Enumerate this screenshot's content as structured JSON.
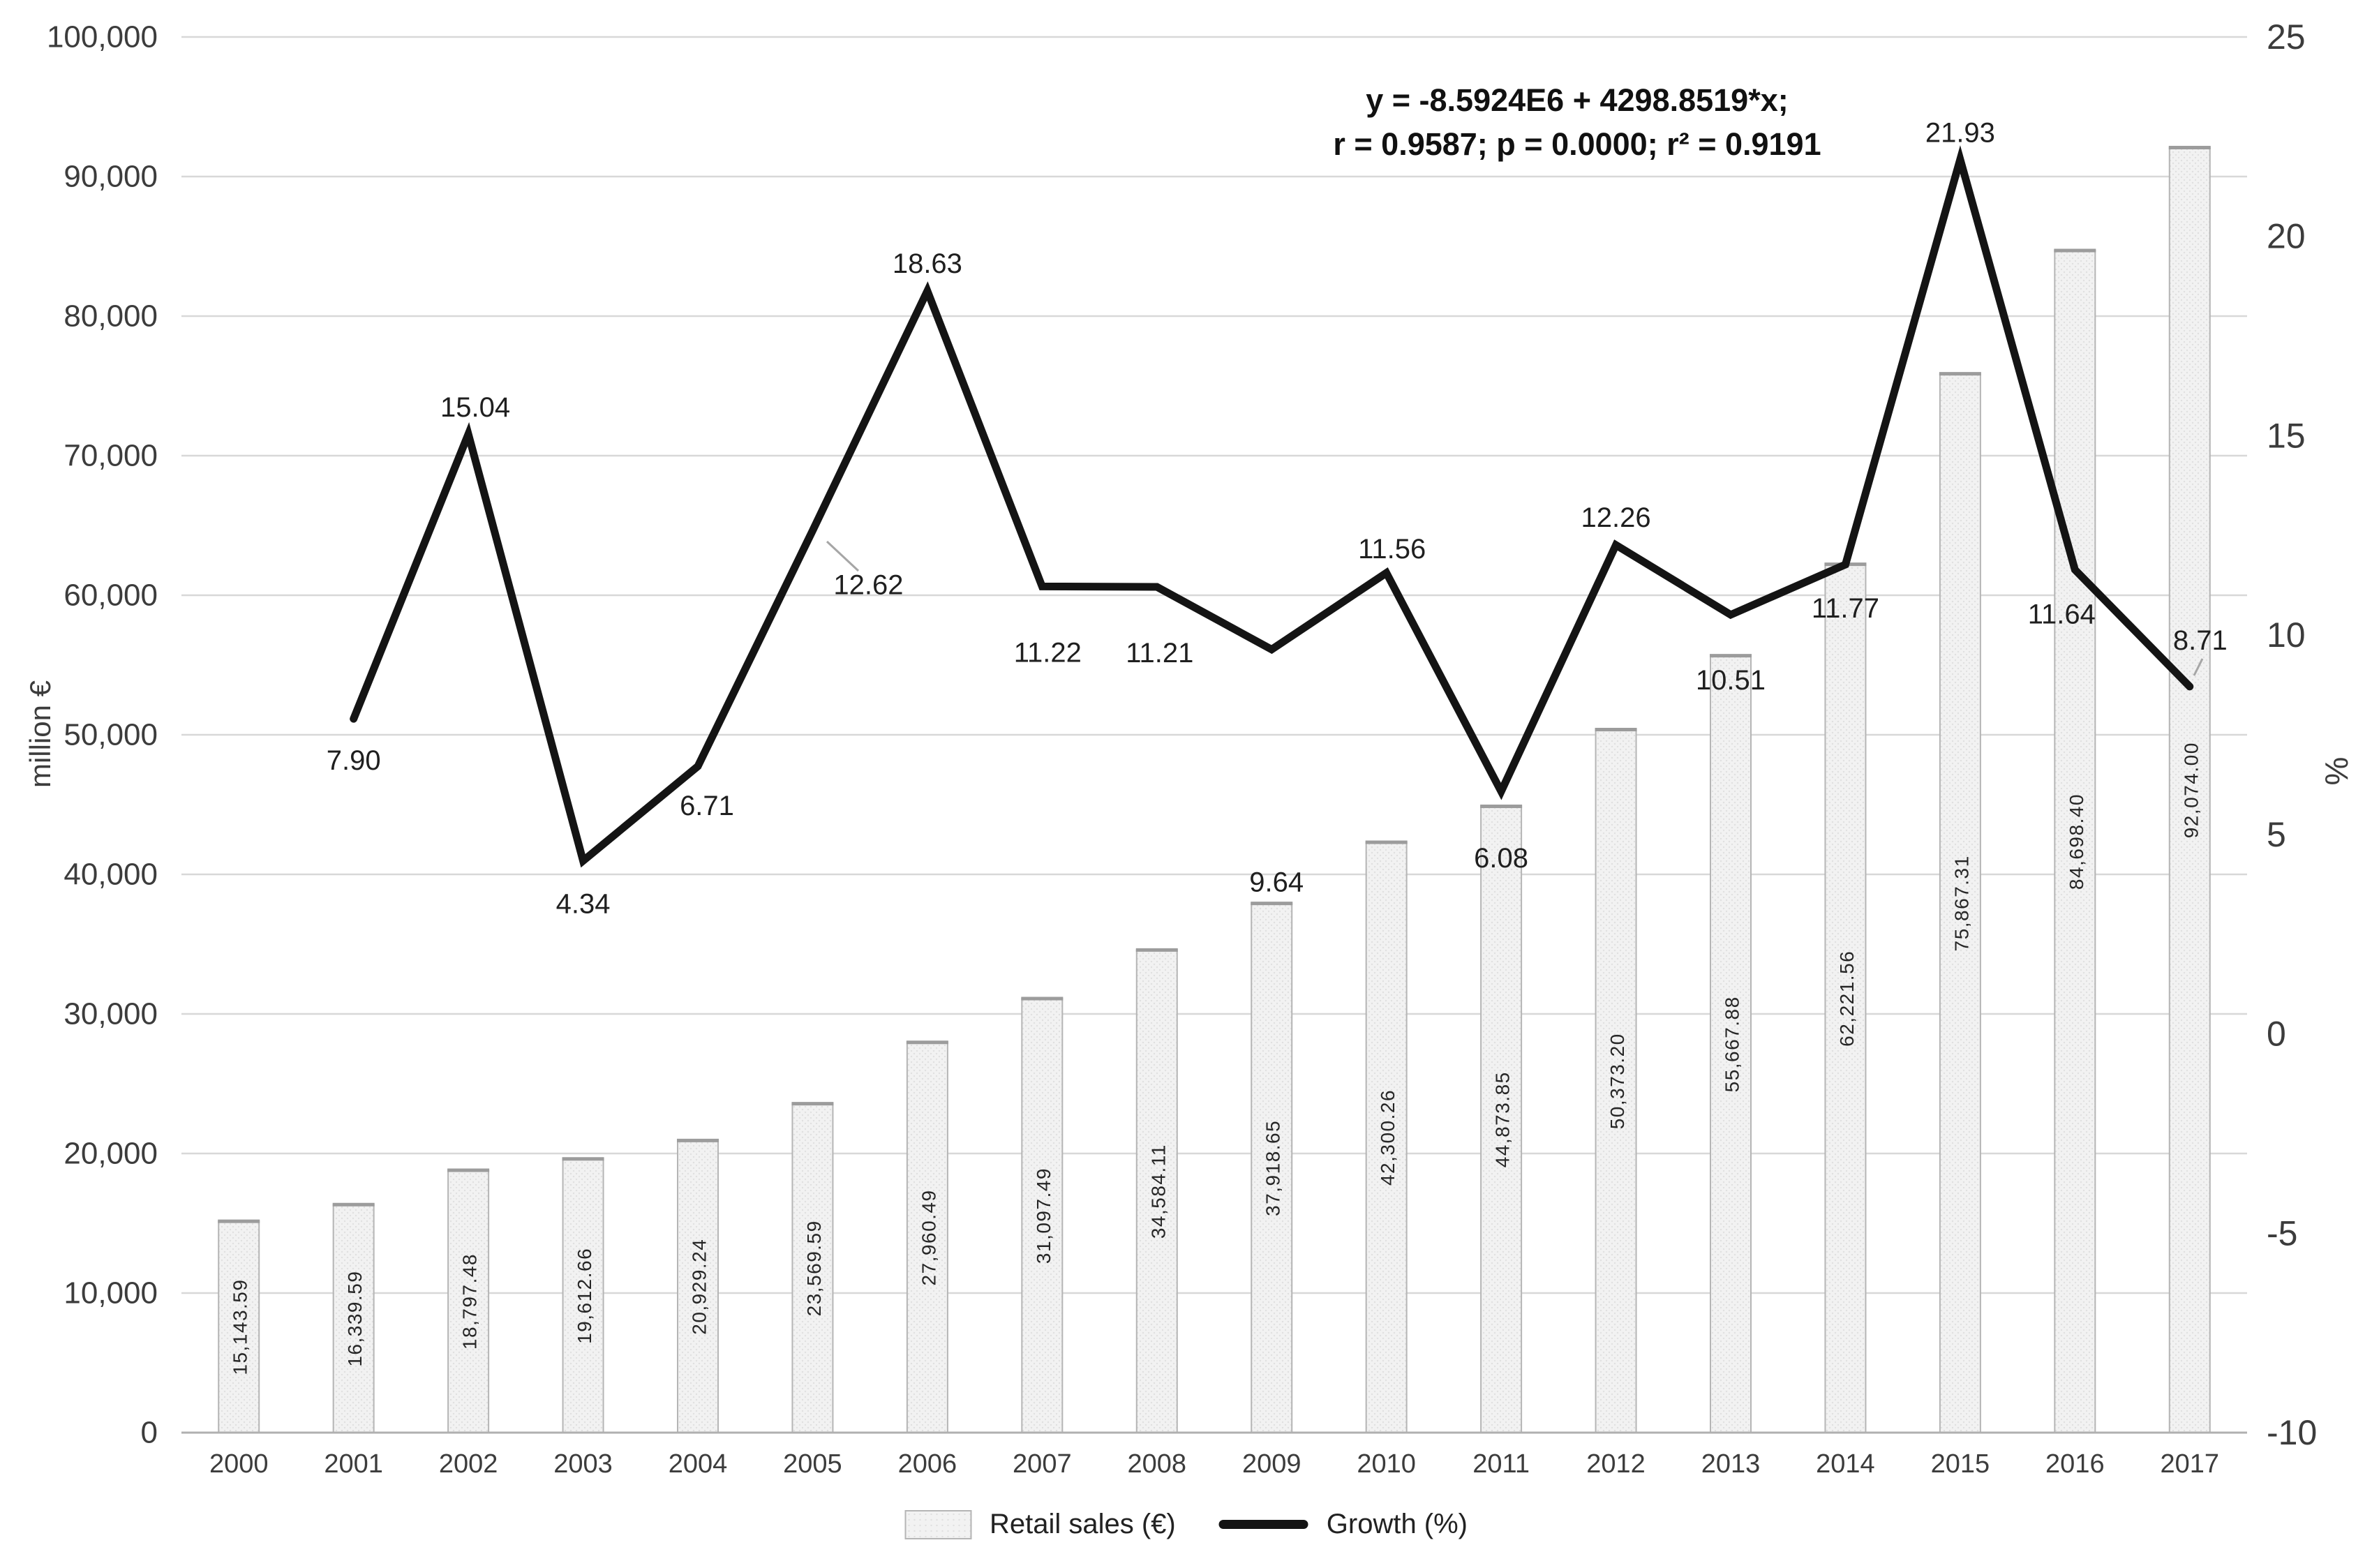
{
  "chart_data": {
    "type": "bar",
    "subtype": "bar-line-combo",
    "title": "",
    "categories": [
      "2000",
      "2001",
      "2002",
      "2003",
      "2004",
      "2005",
      "2006",
      "2007",
      "2008",
      "2009",
      "2010",
      "2011",
      "2012",
      "2013",
      "2014",
      "2015",
      "2016",
      "2017"
    ],
    "series": [
      {
        "name": "Retail sales (€)",
        "type": "bar",
        "y_axis": "left",
        "values": [
          15143.59,
          16339.59,
          18797.48,
          19612.66,
          20929.24,
          23569.59,
          27960.49,
          31097.49,
          34584.11,
          37918.65,
          42300.26,
          44873.85,
          50373.2,
          55667.88,
          62221.56,
          75867.31,
          84698.4,
          92074.0
        ]
      },
      {
        "name": "Growth (%)",
        "type": "line",
        "y_axis": "right",
        "values": [
          null,
          7.9,
          15.04,
          4.34,
          6.71,
          12.62,
          18.63,
          11.22,
          11.21,
          9.64,
          11.56,
          6.08,
          12.26,
          10.51,
          11.77,
          21.93,
          11.64,
          8.71
        ]
      }
    ],
    "bar_value_labels": [
      "15,143.59",
      "16,339.59",
      "18,797.48",
      "19,612.66",
      "20,929.24",
      "23,569.59",
      "27,960.49",
      "31,097.49",
      "34,584.11",
      "37,918.65",
      "42,300.26",
      "44,873.85",
      "50,373.20",
      "55,667.88",
      "62,221.56",
      "75,867.31",
      "84,698.40",
      "92,074.00"
    ],
    "growth_value_labels": [
      "7.90",
      "15.04",
      "4.34",
      "6.71",
      "12.62",
      "18.63",
      "11.22",
      "11.21",
      "9.64",
      "11.56",
      "6.08",
      "12.26",
      "10.51",
      "11.77",
      "21.93",
      "11.64",
      "8.71"
    ],
    "left_axis": {
      "label": "million €",
      "min": 0,
      "max": 100000,
      "step": 10000,
      "tick_values": [
        0,
        10000,
        20000,
        30000,
        40000,
        50000,
        60000,
        70000,
        80000,
        90000,
        100000
      ],
      "tick_labels": [
        "0",
        "10,000",
        "20,000",
        "30,000",
        "40,000",
        "50,000",
        "60,000",
        "70,000",
        "80,000",
        "90,000",
        "100,000"
      ]
    },
    "right_axis": {
      "label": "%",
      "min": -10,
      "max": 25,
      "step": 5,
      "tick_values": [
        -10,
        -5,
        0,
        5,
        10,
        15,
        20,
        25
      ],
      "tick_labels": [
        "-10",
        "-5",
        "0",
        "5",
        "10",
        "15",
        "20",
        "25"
      ]
    },
    "annotation": {
      "line1": "y = -8.5924E6 + 4298.8519*x;",
      "line2": "r = 0.9587; p = 0.0000; r² = 0.9191"
    },
    "legend": {
      "bar_label": "Retail sales (€)",
      "line_label": "Growth (%)",
      "position": "bottom"
    },
    "grid": true,
    "colors": {
      "bar_fill": "#f2f2f2",
      "bar_dot": "#e0e0e0",
      "bar_border": "#b5b5b5",
      "bar_top": "#9c9c9c",
      "line": "#141414",
      "grid": "#d8d8d8",
      "baseline": "#b0b0b0",
      "tick_text": "#3c3c3c",
      "value_text": "#262626",
      "leader": "#a6a6a6",
      "background": "#ffffff"
    }
  }
}
